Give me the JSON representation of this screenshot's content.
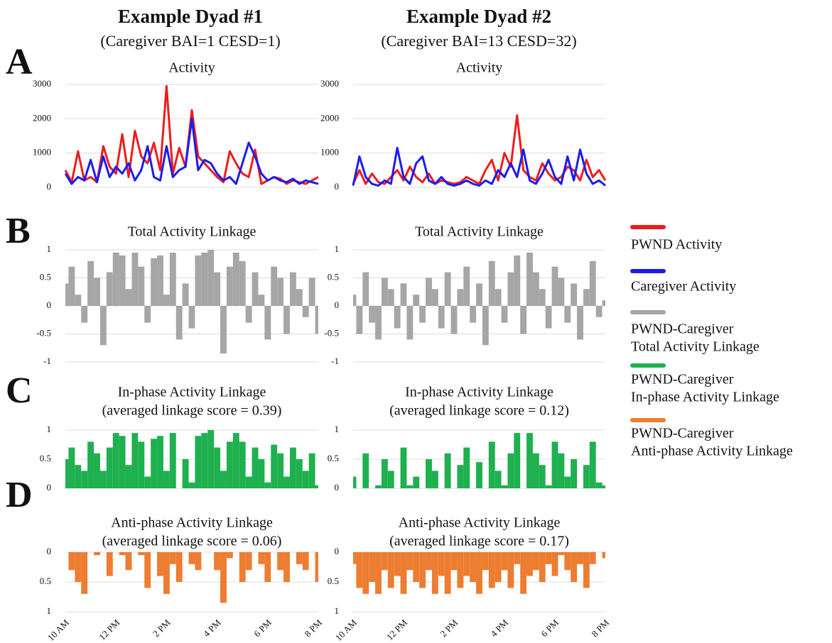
{
  "panel_letters": [
    "A",
    "B",
    "C",
    "D"
  ],
  "columns": [
    {
      "title": "Example Dyad #1",
      "subtitle": "(Caregiver BAI=1 CESD=1)"
    },
    {
      "title": "Example Dyad #2",
      "subtitle": "(Caregiver BAI=13 CESD=32)"
    }
  ],
  "legend": [
    {
      "label": [
        "PWND Activity"
      ],
      "color": "#ee1c1c"
    },
    {
      "label": [
        "Caregiver Activity"
      ],
      "color": "#1c1cee"
    },
    {
      "label": [
        "PWND-Caregiver",
        "Total Activity Linkage"
      ],
      "color": "#a6a6a6"
    },
    {
      "label": [
        "PWND-Caregiver",
        "In-phase Activity Linkage"
      ],
      "color": "#1fb04f"
    },
    {
      "label": [
        "PWND-Caregiver",
        "Anti-phase Activity Linkage"
      ],
      "color": "#ed7d31"
    }
  ],
  "chart_data": [
    {
      "type": "line",
      "title": "Activity",
      "xlim": [
        10,
        20
      ],
      "ylim": [
        -250,
        3000
      ],
      "yticks": [
        0,
        1000,
        2000,
        3000
      ],
      "grid": true,
      "x": [
        10,
        10.25,
        10.5,
        10.75,
        11,
        11.25,
        11.5,
        11.75,
        12,
        12.25,
        12.5,
        12.75,
        13,
        13.25,
        13.5,
        13.75,
        14,
        14.25,
        14.5,
        14.75,
        15,
        15.25,
        15.5,
        15.75,
        16,
        16.25,
        16.5,
        16.75,
        17,
        17.25,
        17.5,
        17.75,
        18,
        18.25,
        18.5,
        18.75,
        19,
        19.25,
        19.5,
        19.75,
        20
      ],
      "series": [
        {
          "name": "PWND Activity",
          "color": "#ee1c1c",
          "values": [
            500,
            150,
            1050,
            200,
            300,
            150,
            1200,
            600,
            400,
            1550,
            300,
            1650,
            900,
            700,
            1300,
            500,
            2950,
            400,
            1150,
            600,
            2250,
            900,
            700,
            500,
            300,
            150,
            1050,
            700,
            400,
            300,
            1100,
            100,
            200,
            300,
            250,
            100,
            200,
            150,
            100,
            200,
            300
          ]
        },
        {
          "name": "Caregiver Activity",
          "color": "#1c1cee",
          "values": [
            400,
            100,
            300,
            200,
            800,
            150,
            900,
            300,
            600,
            400,
            700,
            200,
            500,
            1200,
            300,
            200,
            1200,
            300,
            500,
            600,
            2000,
            500,
            800,
            700,
            400,
            200,
            300,
            100,
            700,
            1300,
            900,
            400,
            200,
            300,
            200,
            150,
            250,
            100,
            200,
            150,
            100
          ]
        }
      ]
    },
    {
      "type": "line",
      "title": "Activity",
      "xlim": [
        10,
        20
      ],
      "ylim": [
        -250,
        3000
      ],
      "yticks": [
        0,
        1000,
        2000,
        3000
      ],
      "grid": true,
      "x": [
        10,
        10.25,
        10.5,
        10.75,
        11,
        11.25,
        11.5,
        11.75,
        12,
        12.25,
        12.5,
        12.75,
        13,
        13.25,
        13.5,
        13.75,
        14,
        14.25,
        14.5,
        14.75,
        15,
        15.25,
        15.5,
        15.75,
        16,
        16.25,
        16.5,
        16.75,
        17,
        17.25,
        17.5,
        17.75,
        18,
        18.25,
        18.5,
        18.75,
        19,
        19.25,
        19.5,
        19.75,
        20
      ],
      "series": [
        {
          "name": "PWND Activity",
          "color": "#ee1c1c",
          "values": [
            100,
            500,
            100,
            400,
            150,
            100,
            300,
            500,
            200,
            600,
            300,
            150,
            400,
            100,
            200,
            150,
            100,
            150,
            300,
            200,
            100,
            500,
            800,
            200,
            1000,
            600,
            2100,
            500,
            300,
            200,
            700,
            400,
            200,
            300,
            600,
            500,
            200,
            800,
            300,
            500,
            200
          ]
        },
        {
          "name": "Caregiver Activity",
          "color": "#1c1cee",
          "values": [
            50,
            900,
            300,
            100,
            50,
            200,
            100,
            1150,
            300,
            100,
            700,
            900,
            200,
            100,
            300,
            100,
            50,
            100,
            200,
            100,
            50,
            200,
            100,
            500,
            300,
            700,
            300,
            1100,
            200,
            100,
            400,
            800,
            300,
            100,
            900,
            200,
            1100,
            400,
            100,
            200,
            50
          ]
        }
      ]
    },
    {
      "type": "bar",
      "title": "Total Activity Linkage",
      "color": "#a6a6a6",
      "xlim": [
        10,
        20
      ],
      "ylim": [
        -1,
        1
      ],
      "yticks": [
        -1,
        -0.5,
        0,
        0.5,
        1
      ],
      "grid": true,
      "x": [
        10,
        10.25,
        10.5,
        10.75,
        11,
        11.25,
        11.5,
        11.75,
        12,
        12.25,
        12.5,
        12.75,
        13,
        13.25,
        13.5,
        13.75,
        14,
        14.25,
        14.5,
        14.75,
        15,
        15.25,
        15.5,
        15.75,
        16,
        16.25,
        16.5,
        16.75,
        17,
        17.25,
        17.5,
        17.75,
        18,
        18.25,
        18.5,
        18.75,
        19,
        19.25,
        19.5,
        19.75,
        20
      ],
      "values": [
        0.4,
        0.7,
        0.2,
        -0.3,
        0.8,
        0.5,
        -0.7,
        0.6,
        0.95,
        0.9,
        0.3,
        0.95,
        0.7,
        -0.3,
        0.85,
        0.9,
        0.2,
        0.95,
        -0.6,
        0.4,
        -0.4,
        0.9,
        0.95,
        1.0,
        0.6,
        -0.85,
        0.7,
        0.95,
        0.8,
        -0.3,
        0.6,
        0.2,
        -0.6,
        0.7,
        0.5,
        -0.5,
        0.6,
        0.3,
        -0.2,
        0.5,
        -0.5
      ]
    },
    {
      "type": "bar",
      "title": "Total Activity Linkage",
      "color": "#a6a6a6",
      "xlim": [
        10,
        20
      ],
      "ylim": [
        -1,
        1
      ],
      "yticks": [
        -1,
        -0.5,
        0,
        0.5,
        1
      ],
      "grid": true,
      "x": [
        10,
        10.25,
        10.5,
        10.75,
        11,
        11.25,
        11.5,
        11.75,
        12,
        12.25,
        12.5,
        12.75,
        13,
        13.25,
        13.5,
        13.75,
        14,
        14.25,
        14.5,
        14.75,
        15,
        15.25,
        15.5,
        15.75,
        16,
        16.25,
        16.5,
        16.75,
        17,
        17.25,
        17.5,
        17.75,
        18,
        18.25,
        18.5,
        18.75,
        19,
        19.25,
        19.5,
        19.75,
        20
      ],
      "values": [
        0.2,
        -0.5,
        0.6,
        -0.3,
        -0.6,
        0.5,
        0.3,
        -0.4,
        0.4,
        -0.6,
        0.2,
        -0.3,
        0.5,
        0.3,
        -0.4,
        0.6,
        -0.5,
        0.3,
        0.7,
        -0.3,
        0.4,
        -0.7,
        0.8,
        0.3,
        -0.3,
        0.6,
        0.9,
        -0.5,
        0.95,
        0.6,
        0.3,
        -0.4,
        0.7,
        0.5,
        -0.3,
        0.4,
        -0.6,
        0.3,
        0.8,
        -0.2,
        0.1
      ]
    },
    {
      "type": "bar",
      "title": "In-phase Activity Linkage",
      "subtitle": "(averaged linkage score = 0.39)",
      "color": "#1fb04f",
      "xlim": [
        10,
        20
      ],
      "ylim": [
        0,
        1
      ],
      "yticks": [
        0,
        0.5,
        1
      ],
      "grid": true,
      "x": [
        10,
        10.25,
        10.5,
        10.75,
        11,
        11.25,
        11.5,
        11.75,
        12,
        12.25,
        12.5,
        12.75,
        13,
        13.25,
        13.5,
        13.75,
        14,
        14.25,
        14.5,
        14.75,
        15,
        15.25,
        15.5,
        15.75,
        16,
        16.25,
        16.5,
        16.75,
        17,
        17.25,
        17.5,
        17.75,
        18,
        18.25,
        18.5,
        18.75,
        19,
        19.25,
        19.5,
        19.75,
        20
      ],
      "values": [
        0.5,
        0.7,
        0.4,
        0.3,
        0.8,
        0.6,
        0.3,
        0.7,
        0.95,
        0.9,
        0.4,
        0.95,
        0.8,
        0.2,
        0.85,
        0.9,
        0.3,
        0.95,
        0,
        0.5,
        0.1,
        0.9,
        0.95,
        1.0,
        0.7,
        0.3,
        0.8,
        0.95,
        0.8,
        0.2,
        0.7,
        0.5,
        0.1,
        0.75,
        0.6,
        0.2,
        0.7,
        0.5,
        0.3,
        0.6,
        0.05
      ]
    },
    {
      "type": "bar",
      "title": "In-phase Activity Linkage",
      "subtitle": "(averaged linkage score = 0.12)",
      "color": "#1fb04f",
      "xlim": [
        10,
        20
      ],
      "ylim": [
        0,
        1
      ],
      "yticks": [
        0,
        0.5,
        1
      ],
      "grid": true,
      "x": [
        10,
        10.25,
        10.5,
        10.75,
        11,
        11.25,
        11.5,
        11.75,
        12,
        12.25,
        12.5,
        12.75,
        13,
        13.25,
        13.5,
        13.75,
        14,
        14.25,
        14.5,
        14.75,
        15,
        15.25,
        15.5,
        15.75,
        16,
        16.25,
        16.5,
        16.75,
        17,
        17.25,
        17.5,
        17.75,
        18,
        18.25,
        18.5,
        18.75,
        19,
        19.25,
        19.5,
        19.75,
        20
      ],
      "values": [
        0.2,
        0,
        0.6,
        0,
        0.05,
        0.5,
        0.3,
        0,
        0.7,
        0.05,
        0.2,
        0,
        0.5,
        0.3,
        0,
        0.6,
        0,
        0.4,
        0.7,
        0,
        0.45,
        0,
        0.8,
        0.3,
        0.05,
        0.6,
        0.95,
        0,
        0.95,
        0.6,
        0.4,
        0.05,
        0.8,
        0.6,
        0.2,
        0.5,
        0,
        0.4,
        0.8,
        0.1,
        0.05
      ]
    },
    {
      "type": "bar",
      "title": "Anti-phase Activity Linkage",
      "subtitle": "(averaged linkage score = 0.06)",
      "color": "#ed7d31",
      "xlim": [
        10,
        20
      ],
      "ylim": [
        1,
        0
      ],
      "yticks": [
        0,
        0.5,
        1
      ],
      "grid": true,
      "x": [
        10,
        10.25,
        10.5,
        10.75,
        11,
        11.25,
        11.5,
        11.75,
        12,
        12.25,
        12.5,
        12.75,
        13,
        13.25,
        13.5,
        13.75,
        14,
        14.25,
        14.5,
        14.75,
        15,
        15.25,
        15.5,
        15.75,
        16,
        16.25,
        16.5,
        16.75,
        17,
        17.25,
        17.5,
        17.75,
        18,
        18.25,
        18.5,
        18.75,
        19,
        19.25,
        19.5,
        19.75,
        20
      ],
      "xticks": [
        {
          "value": 10,
          "label": "10 AM"
        },
        {
          "value": 12,
          "label": "12 PM"
        },
        {
          "value": 14,
          "label": "2 PM"
        },
        {
          "value": 16,
          "label": "4 PM"
        },
        {
          "value": 18,
          "label": "6 PM"
        },
        {
          "value": 20,
          "label": "8 PM"
        }
      ],
      "values": [
        0,
        0.3,
        0.5,
        0.7,
        0,
        0.05,
        0,
        0.4,
        0,
        0.05,
        0.3,
        0,
        0.05,
        0.6,
        0,
        0.4,
        0.7,
        0.2,
        0.5,
        0,
        0.2,
        0.3,
        0,
        0,
        0.3,
        0.85,
        0.1,
        0,
        0.5,
        0.3,
        0,
        0.2,
        0.5,
        0,
        0.3,
        0.5,
        0,
        0.2,
        0.3,
        0,
        0.5
      ]
    },
    {
      "type": "bar",
      "title": "Anti-phase Activity Linkage",
      "subtitle": "(averaged linkage score = 0.17)",
      "color": "#ed7d31",
      "xlim": [
        10,
        20
      ],
      "ylim": [
        1,
        0
      ],
      "yticks": [
        0,
        0.5,
        1
      ],
      "grid": true,
      "x": [
        10,
        10.25,
        10.5,
        10.75,
        11,
        11.25,
        11.5,
        11.75,
        12,
        12.25,
        12.5,
        12.75,
        13,
        13.25,
        13.5,
        13.75,
        14,
        14.25,
        14.5,
        14.75,
        15,
        15.25,
        15.5,
        15.75,
        16,
        16.25,
        16.5,
        16.75,
        17,
        17.25,
        17.5,
        17.75,
        18,
        18.25,
        18.5,
        18.75,
        19,
        19.25,
        19.5,
        19.75,
        20
      ],
      "xticks": [
        {
          "value": 10,
          "label": "10 AM"
        },
        {
          "value": 12,
          "label": "12 PM"
        },
        {
          "value": 14,
          "label": "2 PM"
        },
        {
          "value": 16,
          "label": "4 PM"
        },
        {
          "value": 18,
          "label": "6 PM"
        },
        {
          "value": 20,
          "label": "8 PM"
        }
      ],
      "values": [
        0.2,
        0.6,
        0.7,
        0.5,
        0.7,
        0.3,
        0.6,
        0.4,
        0.7,
        0.3,
        0.5,
        0.6,
        0.3,
        0.7,
        0.4,
        0.7,
        0.3,
        0.6,
        0.4,
        0.5,
        0.7,
        0.3,
        0.6,
        0.5,
        0.3,
        0.6,
        0.2,
        0.7,
        0.4,
        0.3,
        0.5,
        0.2,
        0.4,
        0.05,
        0.3,
        0.5,
        0.2,
        0.6,
        0.2,
        0,
        0.1
      ]
    }
  ]
}
